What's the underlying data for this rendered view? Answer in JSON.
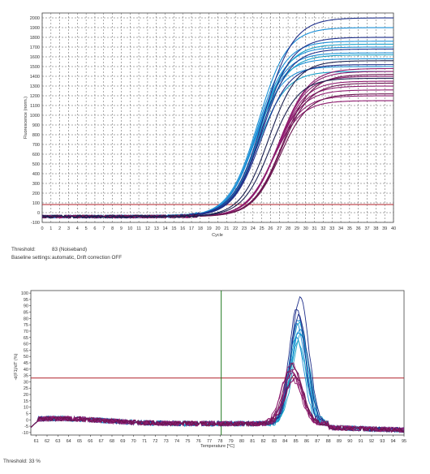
{
  "chart_data": [
    {
      "type": "line",
      "xlabel": "Cycle",
      "ylabel": "Fluorescence (norm.)",
      "xlim": [
        0,
        40
      ],
      "ylim": [
        -100,
        2050
      ],
      "x_ticks": [
        0,
        1,
        2,
        3,
        4,
        5,
        6,
        7,
        8,
        9,
        10,
        11,
        12,
        13,
        14,
        15,
        16,
        17,
        18,
        19,
        20,
        21,
        22,
        23,
        24,
        25,
        26,
        27,
        28,
        29,
        30,
        31,
        32,
        33,
        34,
        35,
        36,
        37,
        38,
        39,
        40
      ],
      "y_ticks": [
        -100,
        0,
        100,
        200,
        300,
        400,
        500,
        600,
        700,
        800,
        900,
        1000,
        1100,
        1200,
        1300,
        1400,
        1500,
        1600,
        1700,
        1800,
        1900,
        2000
      ],
      "grid": true,
      "threshold": 83,
      "series_groups": [
        {
          "color": "#1a8fd6",
          "curves": [
            {
              "baseline": -40,
              "plateau": 1500,
              "midpoint": 24.2,
              "slope": 1.55
            },
            {
              "baseline": -40,
              "plateau": 1580,
              "midpoint": 24.3,
              "slope": 1.55
            },
            {
              "baseline": -40,
              "plateau": 1640,
              "midpoint": 24.4,
              "slope": 1.6
            },
            {
              "baseline": -40,
              "plateau": 1700,
              "midpoint": 24.5,
              "slope": 1.6
            },
            {
              "baseline": -40,
              "plateau": 1760,
              "midpoint": 24.5,
              "slope": 1.6
            },
            {
              "baseline": -40,
              "plateau": 1900,
              "midpoint": 24.6,
              "slope": 1.65
            }
          ]
        },
        {
          "color": "#16a0c8",
          "curves": [
            {
              "baseline": -40,
              "plateau": 1450,
              "midpoint": 24.6,
              "slope": 1.6
            },
            {
              "baseline": -40,
              "plateau": 1620,
              "midpoint": 24.7,
              "slope": 1.6
            },
            {
              "baseline": -40,
              "plateau": 1730,
              "midpoint": 24.8,
              "slope": 1.6
            }
          ]
        },
        {
          "color": "#1f2f8a",
          "curves": [
            {
              "baseline": -40,
              "plateau": 1520,
              "midpoint": 24.9,
              "slope": 1.6
            },
            {
              "baseline": -40,
              "plateau": 1680,
              "midpoint": 25.0,
              "slope": 1.6
            },
            {
              "baseline": -40,
              "plateau": 1800,
              "midpoint": 25.1,
              "slope": 1.65
            },
            {
              "baseline": -40,
              "plateau": 2000,
              "midpoint": 25.2,
              "slope": 1.7
            }
          ]
        },
        {
          "color": "#8e1c6f",
          "curves": [
            {
              "baseline": -40,
              "plateau": 1150,
              "midpoint": 26.3,
              "slope": 1.6
            },
            {
              "baseline": -40,
              "plateau": 1200,
              "midpoint": 26.4,
              "slope": 1.6
            },
            {
              "baseline": -40,
              "plateau": 1260,
              "midpoint": 26.5,
              "slope": 1.6
            },
            {
              "baseline": -40,
              "plateau": 1300,
              "midpoint": 26.6,
              "slope": 1.6
            },
            {
              "baseline": -40,
              "plateau": 1350,
              "midpoint": 26.7,
              "slope": 1.6
            },
            {
              "baseline": -40,
              "plateau": 1400,
              "midpoint": 26.8,
              "slope": 1.6
            },
            {
              "baseline": -40,
              "plateau": 1450,
              "midpoint": 26.9,
              "slope": 1.65
            },
            {
              "baseline": -40,
              "plateau": 1480,
              "midpoint": 27.0,
              "slope": 1.65
            }
          ]
        },
        {
          "color": "#6b1550",
          "curves": [
            {
              "baseline": -40,
              "plateau": 1220,
              "midpoint": 27.1,
              "slope": 1.6
            },
            {
              "baseline": -40,
              "plateau": 1330,
              "midpoint": 27.2,
              "slope": 1.6
            },
            {
              "baseline": -40,
              "plateau": 1420,
              "midpoint": 27.3,
              "slope": 1.65
            }
          ]
        },
        {
          "color": "#1b2150",
          "curves": [
            {
              "baseline": -40,
              "plateau": 1380,
              "midpoint": 26.0,
              "slope": 1.6
            },
            {
              "baseline": -40,
              "plateau": 1560,
              "midpoint": 25.8,
              "slope": 1.6
            }
          ]
        }
      ],
      "info": {
        "threshold_label": "Threshold:",
        "threshold_value": "83 (Noiseband)",
        "baseline_label": "Baseline settings:",
        "baseline_value": "automatic, Drift correction OFF"
      }
    },
    {
      "type": "line",
      "xlabel": "Temperature [°C]",
      "ylabel": "-d(F1)/dT (%)",
      "xlim": [
        60.5,
        95
      ],
      "ylim": [
        -12,
        102
      ],
      "x_ticks": [
        61,
        62,
        63,
        64,
        65,
        66,
        67,
        68,
        69,
        70,
        71,
        72,
        73,
        74,
        75,
        76,
        77,
        78,
        79,
        80,
        81,
        82,
        83,
        84,
        85,
        86,
        87,
        88,
        89,
        90,
        91,
        92,
        93,
        94,
        95
      ],
      "y_ticks": [
        -10,
        -5,
        0,
        5,
        10,
        15,
        20,
        25,
        30,
        35,
        40,
        45,
        50,
        55,
        60,
        65,
        70,
        75,
        80,
        85,
        90,
        95,
        100
      ],
      "grid": false,
      "threshold": 33,
      "marker_x": 78.1,
      "series_groups": [
        {
          "color": "#1a8fd6",
          "curves": [
            {
              "peak_temp": 85.1,
              "peak_height": 78,
              "width": 0.75
            },
            {
              "peak_temp": 85.2,
              "peak_height": 82,
              "width": 0.75
            },
            {
              "peak_temp": 85.3,
              "peak_height": 72,
              "width": 0.8
            },
            {
              "peak_temp": 85.0,
              "peak_height": 68,
              "width": 0.75
            },
            {
              "peak_temp": 85.4,
              "peak_height": 76,
              "width": 0.8
            }
          ]
        },
        {
          "color": "#16a0c8",
          "curves": [
            {
              "peak_temp": 85.3,
              "peak_height": 80,
              "width": 0.75
            },
            {
              "peak_temp": 85.5,
              "peak_height": 70,
              "width": 0.8
            },
            {
              "peak_temp": 85.2,
              "peak_height": 64,
              "width": 0.75
            }
          ]
        },
        {
          "color": "#1f2f8a",
          "curves": [
            {
              "peak_temp": 85.4,
              "peak_height": 99,
              "width": 0.8
            },
            {
              "peak_temp": 85.1,
              "peak_height": 90,
              "width": 0.75
            },
            {
              "peak_temp": 85.3,
              "peak_height": 85,
              "width": 0.8
            }
          ]
        },
        {
          "color": "#8e1c6f",
          "curves": [
            {
              "peak_temp": 84.6,
              "peak_height": 48,
              "width": 0.85
            },
            {
              "peak_temp": 84.8,
              "peak_height": 44,
              "width": 0.85
            },
            {
              "peak_temp": 84.7,
              "peak_height": 40,
              "width": 0.85
            },
            {
              "peak_temp": 84.9,
              "peak_height": 36,
              "width": 0.85
            },
            {
              "peak_temp": 84.5,
              "peak_height": 42,
              "width": 0.85
            },
            {
              "peak_temp": 84.8,
              "peak_height": 34,
              "width": 0.85
            }
          ]
        },
        {
          "color": "#6b1550",
          "curves": [
            {
              "peak_temp": 84.7,
              "peak_height": 46,
              "width": 0.85
            },
            {
              "peak_temp": 84.9,
              "peak_height": 38,
              "width": 0.85
            }
          ]
        }
      ],
      "info": {
        "threshold_text": "Threshold:   33 %"
      }
    }
  ],
  "colors": {
    "threshold_line": "#b0202a",
    "marker_line": "#1f7a1f",
    "grid": "#555555",
    "axis": "#333333"
  }
}
